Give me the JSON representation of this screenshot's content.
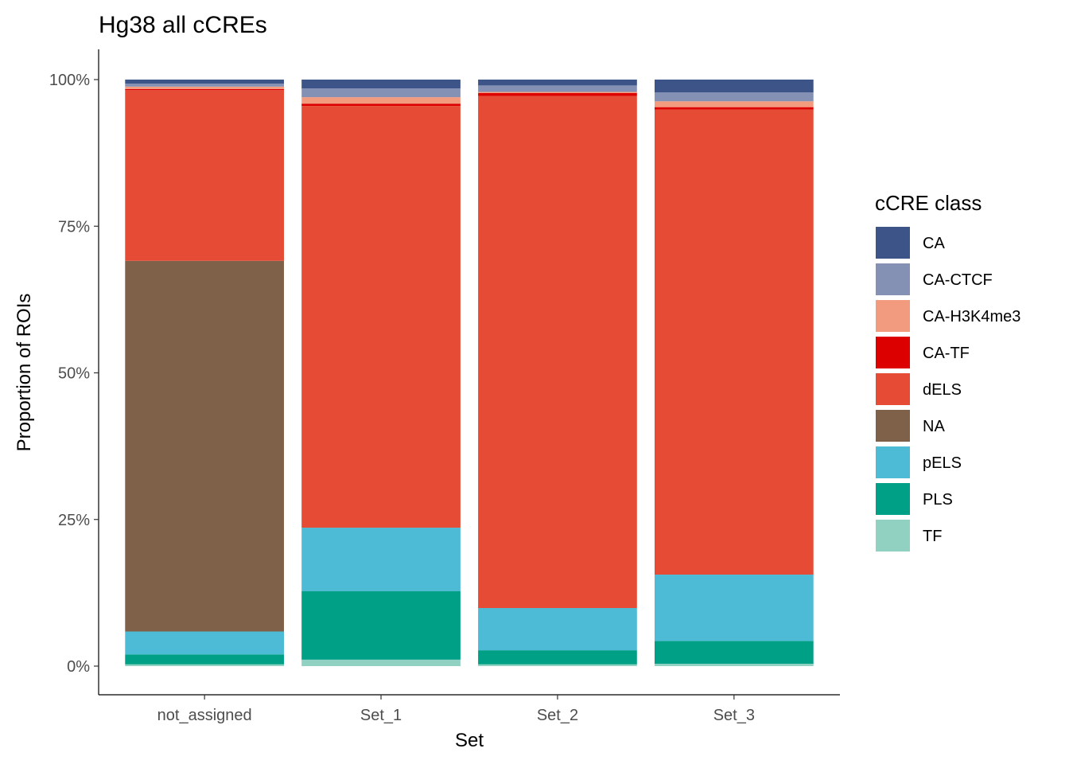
{
  "chart_data": {
    "type": "bar",
    "stacked": true,
    "normalized": true,
    "title": "Hg38 all cCREs",
    "xlabel": "Set",
    "ylabel": "Proportion of ROIs",
    "categories": [
      "not_assigned",
      "Set_1",
      "Set_2",
      "Set_3"
    ],
    "ylim": [
      0,
      1
    ],
    "yticks": [
      0,
      0.25,
      0.5,
      0.75,
      1
    ],
    "ytick_labels": [
      "0%",
      "25%",
      "50%",
      "75%",
      "100%"
    ],
    "grid": false,
    "legend": {
      "title": "cCRE class",
      "position": "right"
    },
    "series": [
      {
        "name": "CA",
        "color": "#3C5488",
        "values": [
          0.007,
          0.015,
          0.01,
          0.022
        ]
      },
      {
        "name": "CA-CTCF",
        "color": "#8491B4",
        "values": [
          0.005,
          0.015,
          0.011,
          0.015
        ]
      },
      {
        "name": "CA-H3K4me3",
        "color": "#F39B7F",
        "values": [
          0.004,
          0.011,
          0.002,
          0.01
        ]
      },
      {
        "name": "CA-TF",
        "color": "#DC0000",
        "values": [
          0.002,
          0.004,
          0.005,
          0.004
        ]
      },
      {
        "name": "dELS",
        "color": "#E64B35",
        "values": [
          0.291,
          0.719,
          0.873,
          0.793
        ]
      },
      {
        "name": "NA",
        "color": "#7E6148",
        "values": [
          0.632,
          0.0,
          0.0,
          0.0
        ]
      },
      {
        "name": "pELS",
        "color": "#4DBBD5",
        "values": [
          0.039,
          0.108,
          0.072,
          0.113
        ]
      },
      {
        "name": "PLS",
        "color": "#00A087",
        "values": [
          0.017,
          0.117,
          0.024,
          0.039
        ]
      },
      {
        "name": "TF",
        "color": "#91D1C2",
        "values": [
          0.003,
          0.011,
          0.003,
          0.004
        ]
      }
    ]
  }
}
